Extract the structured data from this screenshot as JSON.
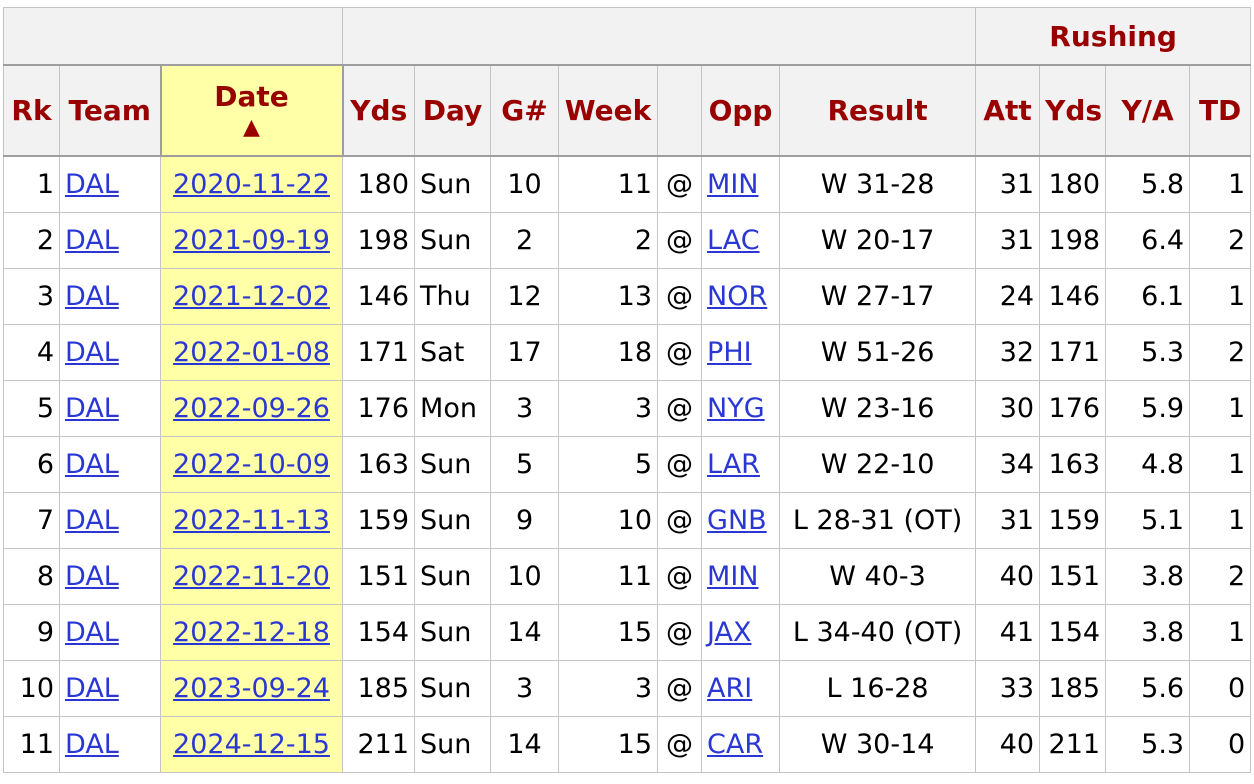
{
  "group_headers": {
    "rushing": "Rushing"
  },
  "columns": {
    "rk": "Rk",
    "team": "Team",
    "date": "Date",
    "date_sort_arrow": "▲",
    "yds": "Yds",
    "day": "Day",
    "game_num": "G#",
    "week": "Week",
    "location": "",
    "opp": "Opp",
    "result": "Result",
    "att": "Att",
    "rush_yds": "Yds",
    "ya": "Y/A",
    "td": "TD"
  },
  "rows": [
    {
      "rk": "1",
      "team": "DAL",
      "date": "2020-11-22",
      "yds": "180",
      "day": "Sun",
      "g": "10",
      "week": "11",
      "loc": "@",
      "opp": "MIN",
      "result": "W 31-28",
      "att": "31",
      "ryds": "180",
      "ya": "5.8",
      "td": "1"
    },
    {
      "rk": "2",
      "team": "DAL",
      "date": "2021-09-19",
      "yds": "198",
      "day": "Sun",
      "g": "2",
      "week": "2",
      "loc": "@",
      "opp": "LAC",
      "result": "W 20-17",
      "att": "31",
      "ryds": "198",
      "ya": "6.4",
      "td": "2"
    },
    {
      "rk": "3",
      "team": "DAL",
      "date": "2021-12-02",
      "yds": "146",
      "day": "Thu",
      "g": "12",
      "week": "13",
      "loc": "@",
      "opp": "NOR",
      "result": "W 27-17",
      "att": "24",
      "ryds": "146",
      "ya": "6.1",
      "td": "1"
    },
    {
      "rk": "4",
      "team": "DAL",
      "date": "2022-01-08",
      "yds": "171",
      "day": "Sat",
      "g": "17",
      "week": "18",
      "loc": "@",
      "opp": "PHI",
      "result": "W 51-26",
      "att": "32",
      "ryds": "171",
      "ya": "5.3",
      "td": "2"
    },
    {
      "rk": "5",
      "team": "DAL",
      "date": "2022-09-26",
      "yds": "176",
      "day": "Mon",
      "g": "3",
      "week": "3",
      "loc": "@",
      "opp": "NYG",
      "result": "W 23-16",
      "att": "30",
      "ryds": "176",
      "ya": "5.9",
      "td": "1"
    },
    {
      "rk": "6",
      "team": "DAL",
      "date": "2022-10-09",
      "yds": "163",
      "day": "Sun",
      "g": "5",
      "week": "5",
      "loc": "@",
      "opp": "LAR",
      "result": "W 22-10",
      "att": "34",
      "ryds": "163",
      "ya": "4.8",
      "td": "1"
    },
    {
      "rk": "7",
      "team": "DAL",
      "date": "2022-11-13",
      "yds": "159",
      "day": "Sun",
      "g": "9",
      "week": "10",
      "loc": "@",
      "opp": "GNB",
      "result": "L 28-31 (OT)",
      "att": "31",
      "ryds": "159",
      "ya": "5.1",
      "td": "1"
    },
    {
      "rk": "8",
      "team": "DAL",
      "date": "2022-11-20",
      "yds": "151",
      "day": "Sun",
      "g": "10",
      "week": "11",
      "loc": "@",
      "opp": "MIN",
      "result": "W 40-3",
      "att": "40",
      "ryds": "151",
      "ya": "3.8",
      "td": "2"
    },
    {
      "rk": "9",
      "team": "DAL",
      "date": "2022-12-18",
      "yds": "154",
      "day": "Sun",
      "g": "14",
      "week": "15",
      "loc": "@",
      "opp": "JAX",
      "result": "L 34-40 (OT)",
      "att": "41",
      "ryds": "154",
      "ya": "3.8",
      "td": "1"
    },
    {
      "rk": "10",
      "team": "DAL",
      "date": "2023-09-24",
      "yds": "185",
      "day": "Sun",
      "g": "3",
      "week": "3",
      "loc": "@",
      "opp": "ARI",
      "result": "L 16-28",
      "att": "33",
      "ryds": "185",
      "ya": "5.6",
      "td": "0"
    },
    {
      "rk": "11",
      "team": "DAL",
      "date": "2024-12-15",
      "yds": "211",
      "day": "Sun",
      "g": "14",
      "week": "15",
      "loc": "@",
      "opp": "CAR",
      "result": "W 30-14",
      "att": "40",
      "ryds": "211",
      "ya": "5.3",
      "td": "0"
    }
  ]
}
